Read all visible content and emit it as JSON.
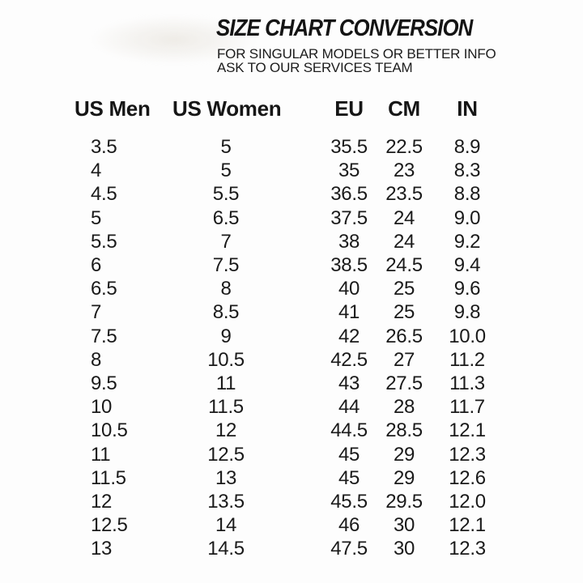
{
  "page": {
    "background": "#fdfdfd",
    "text_color": "#161616"
  },
  "header": {
    "title": "SIZE CHART CONVERSION",
    "subtitle_line1": "FOR SINGULAR MODELS OR BETTER INFO",
    "subtitle_line2": "ASK TO OUR SERVICES TEAM"
  },
  "table": {
    "columns": [
      "US Men",
      "US Women",
      "EU",
      "CM",
      "IN"
    ],
    "rows": [
      [
        "3.5",
        "5",
        "35.5",
        "22.5",
        "8.9"
      ],
      [
        "4",
        "5",
        "35",
        "23",
        "8.3"
      ],
      [
        "4.5",
        "5.5",
        "36.5",
        "23.5",
        "8.8"
      ],
      [
        "5",
        "6.5",
        "37.5",
        "24",
        "9.0"
      ],
      [
        "5.5",
        "7",
        "38",
        "24",
        "9.2"
      ],
      [
        "6",
        "7.5",
        "38.5",
        "24.5",
        "9.4"
      ],
      [
        "6.5",
        "8",
        "40",
        "25",
        "9.6"
      ],
      [
        "7",
        "8.5",
        "41",
        "25",
        "9.8"
      ],
      [
        "7.5",
        "9",
        "42",
        "26.5",
        "10.0"
      ],
      [
        "8",
        "10.5",
        "42.5",
        "27",
        "11.2"
      ],
      [
        "9.5",
        "11",
        "43",
        "27.5",
        "11.3"
      ],
      [
        "10",
        "11.5",
        "44",
        "28",
        "11.7"
      ],
      [
        "10.5",
        "12",
        "44.5",
        "28.5",
        "12.1"
      ],
      [
        "11",
        "12.5",
        "45",
        "29",
        "12.3"
      ],
      [
        "11.5",
        "13",
        "45",
        "29",
        "12.6"
      ],
      [
        "12",
        "13.5",
        "45.5",
        "29.5",
        "12.0"
      ],
      [
        "12.5",
        "14",
        "46",
        "30",
        "12.1"
      ],
      [
        "13",
        "14.5",
        "47.5",
        "30",
        "12.3"
      ]
    ]
  },
  "chart_data": {
    "type": "table",
    "title": "SIZE CHART CONVERSION",
    "columns": [
      "US Men",
      "US Women",
      "EU",
      "CM",
      "IN"
    ],
    "rows": [
      [
        3.5,
        5,
        35.5,
        22.5,
        8.9
      ],
      [
        4,
        5,
        35,
        23,
        8.3
      ],
      [
        4.5,
        5.5,
        36.5,
        23.5,
        8.8
      ],
      [
        5,
        6.5,
        37.5,
        24,
        9.0
      ],
      [
        5.5,
        7,
        38,
        24,
        9.2
      ],
      [
        6,
        7.5,
        38.5,
        24.5,
        9.4
      ],
      [
        6.5,
        8,
        40,
        25,
        9.6
      ],
      [
        7,
        8.5,
        41,
        25,
        9.8
      ],
      [
        7.5,
        9,
        42,
        26.5,
        10.0
      ],
      [
        8,
        10.5,
        42.5,
        27,
        11.2
      ],
      [
        9.5,
        11,
        43,
        27.5,
        11.3
      ],
      [
        10,
        11.5,
        44,
        28,
        11.7
      ],
      [
        10.5,
        12,
        44.5,
        28.5,
        12.1
      ],
      [
        11,
        12.5,
        45,
        29,
        12.3
      ],
      [
        11.5,
        13,
        45,
        29,
        12.6
      ],
      [
        12,
        13.5,
        45.5,
        29.5,
        12.0
      ],
      [
        12.5,
        14,
        46,
        30,
        12.1
      ],
      [
        13,
        14.5,
        47.5,
        30,
        12.3
      ]
    ]
  }
}
